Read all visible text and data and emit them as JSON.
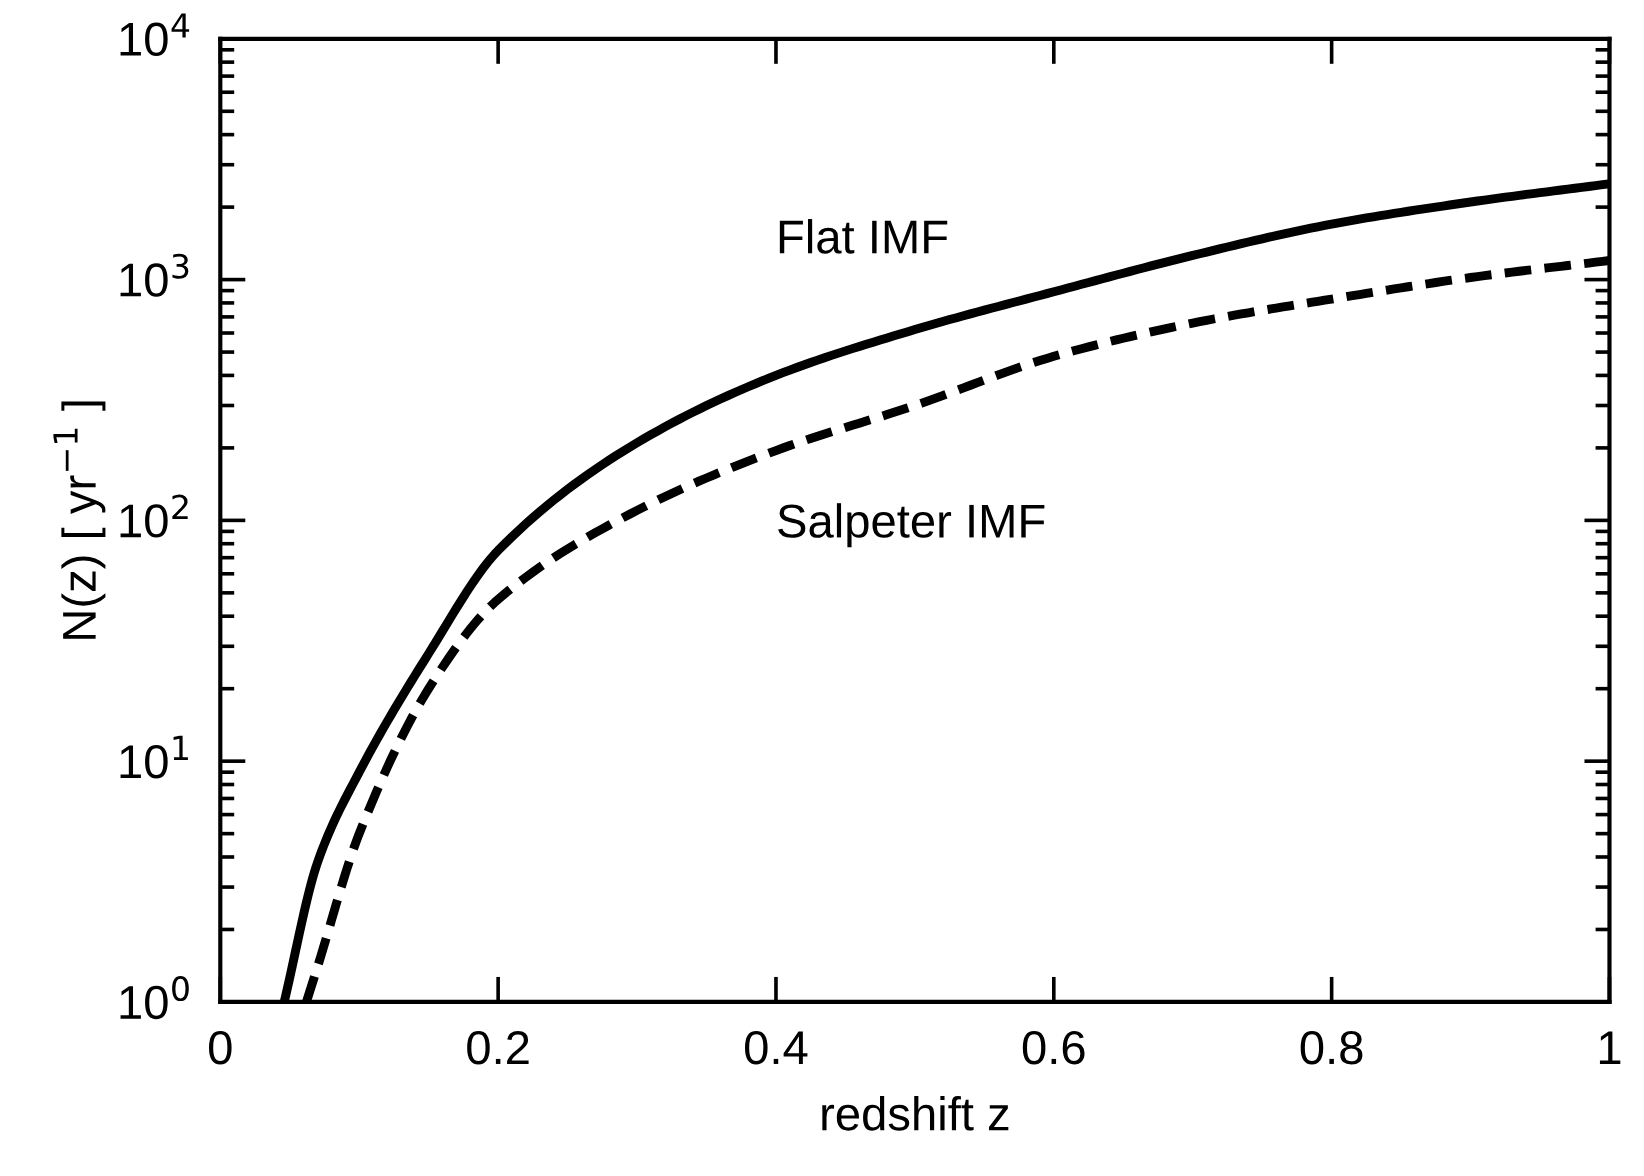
{
  "chart_data": {
    "type": "line",
    "xlabel": "redshift z",
    "ylabel": "N(z) [ yr$^{−1}$ ]",
    "log": "y",
    "xlim": [
      0,
      1
    ],
    "xticks": [
      0,
      0.2,
      0.4,
      0.6,
      0.8,
      1
    ],
    "ylim": [
      1,
      10000
    ],
    "yticks": [
      {
        "value": 1,
        "label": "10$^{0}$"
      },
      {
        "value": 10,
        "label": "10$^{1}$"
      },
      {
        "value": 100,
        "label": "10$^{2}$"
      },
      {
        "value": 1000,
        "label": "10$^{3}$"
      },
      {
        "value": 10000,
        "label": "10$^{4}$"
      }
    ],
    "grid": false,
    "legend": false,
    "marker": "none",
    "series": [
      {
        "color": "#000000",
        "line_style": "solid",
        "x": [
          0.046,
          0.07,
          0.1,
          0.15,
          0.2,
          0.3,
          0.4,
          0.5,
          0.6,
          0.7,
          0.8,
          0.9,
          1.0
        ],
        "values": [
          1,
          3.8,
          9,
          28,
          75,
          210,
          400,
          620,
          890,
          1260,
          1700,
          2100,
          2500
        ]
      },
      {
        "color": "#000000",
        "line_style": "dashed",
        "x": [
          0.062,
          0.07,
          0.1,
          0.15,
          0.2,
          0.3,
          0.4,
          0.5,
          0.6,
          0.7,
          0.8,
          0.9,
          1.0
        ],
        "values": [
          1,
          1.4,
          5,
          20,
          47,
          110,
          195,
          300,
          480,
          660,
          830,
          1020,
          1200
        ]
      }
    ],
    "annotations": [
      "Flat IMF",
      "Salpeter IMF"
    ]
  }
}
